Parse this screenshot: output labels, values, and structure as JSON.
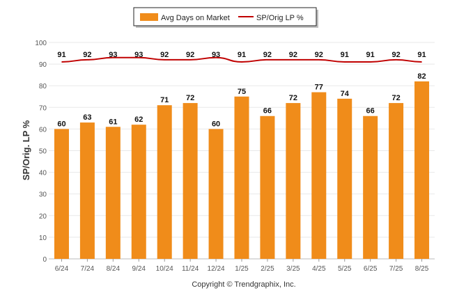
{
  "chart_data": {
    "type": "bar",
    "categories": [
      "6/24",
      "7/24",
      "8/24",
      "9/24",
      "10/24",
      "11/24",
      "12/24",
      "1/25",
      "2/25",
      "3/25",
      "4/25",
      "5/25",
      "6/25",
      "7/25",
      "8/25"
    ],
    "series": [
      {
        "name": "Avg Days on Market",
        "type": "bar",
        "color": "#F08C1A",
        "values": [
          60,
          63,
          61,
          62,
          71,
          72,
          60,
          75,
          66,
          72,
          77,
          74,
          66,
          72,
          82
        ]
      },
      {
        "name": "SP/Orig LP %",
        "type": "line",
        "color": "#C00000",
        "values": [
          91,
          92,
          93,
          93,
          92,
          92,
          93,
          91,
          92,
          92,
          92,
          91,
          91,
          92,
          91
        ]
      }
    ],
    "ylabel": "SP/Orig. LP %",
    "ylim": [
      0,
      100
    ],
    "yticks": [
      0,
      10,
      20,
      30,
      40,
      50,
      60,
      70,
      80,
      90,
      100
    ],
    "grid": true,
    "legend": "top-center"
  },
  "footer": {
    "copyright": "Copyright © Trendgraphix, Inc."
  }
}
